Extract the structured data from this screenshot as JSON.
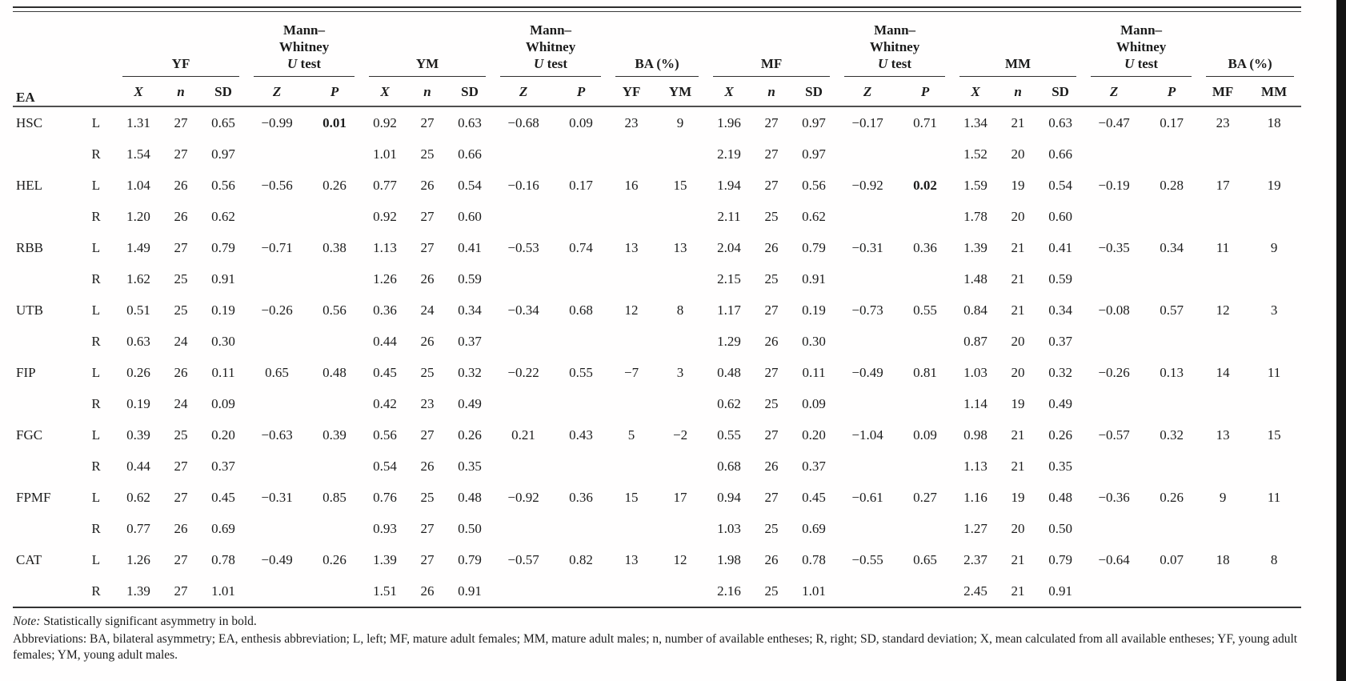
{
  "table": {
    "header": {
      "ea": "EA",
      "groups": {
        "yf": "YF",
        "ym": "YM",
        "mf": "MF",
        "mm": "MM",
        "ba": "BA (%)",
        "mw_line1": "Mann–",
        "mw_line2": "Whitney",
        "mw_u": "U",
        "mw_test": " test"
      },
      "sub": {
        "x": "X",
        "n": "n",
        "sd": "SD",
        "z": "Z",
        "p": "P",
        "yf": "YF",
        "ym": "YM",
        "mf": "MF",
        "mm": "MM"
      }
    },
    "rows": [
      {
        "ea": "HSC",
        "side": "L",
        "cells": [
          "1.31",
          "27",
          "0.65",
          "−0.99",
          "0.01",
          "0.92",
          "27",
          "0.63",
          "−0.68",
          "0.09",
          "23",
          "9",
          "1.96",
          "27",
          "0.97",
          "−0.17",
          "0.71",
          "1.34",
          "21",
          "0.63",
          "−0.47",
          "0.17",
          "23",
          "18"
        ],
        "bold": [
          4
        ]
      },
      {
        "ea": "",
        "side": "R",
        "cells": [
          "1.54",
          "27",
          "0.97",
          "",
          "",
          "1.01",
          "25",
          "0.66",
          "",
          "",
          "",
          "",
          "2.19",
          "27",
          "0.97",
          "",
          "",
          "1.52",
          "20",
          "0.66",
          "",
          "",
          "",
          ""
        ],
        "bold": []
      },
      {
        "ea": "HEL",
        "side": "L",
        "cells": [
          "1.04",
          "26",
          "0.56",
          "−0.56",
          "0.26",
          "0.77",
          "26",
          "0.54",
          "−0.16",
          "0.17",
          "16",
          "15",
          "1.94",
          "27",
          "0.56",
          "−0.92",
          "0.02",
          "1.59",
          "19",
          "0.54",
          "−0.19",
          "0.28",
          "17",
          "19"
        ],
        "bold": [
          16
        ]
      },
      {
        "ea": "",
        "side": "R",
        "cells": [
          "1.20",
          "26",
          "0.62",
          "",
          "",
          "0.92",
          "27",
          "0.60",
          "",
          "",
          "",
          "",
          "2.11",
          "25",
          "0.62",
          "",
          "",
          "1.78",
          "20",
          "0.60",
          "",
          "",
          "",
          ""
        ],
        "bold": []
      },
      {
        "ea": "RBB",
        "side": "L",
        "cells": [
          "1.49",
          "27",
          "0.79",
          "−0.71",
          "0.38",
          "1.13",
          "27",
          "0.41",
          "−0.53",
          "0.74",
          "13",
          "13",
          "2.04",
          "26",
          "0.79",
          "−0.31",
          "0.36",
          "1.39",
          "21",
          "0.41",
          "−0.35",
          "0.34",
          "11",
          "9"
        ],
        "bold": []
      },
      {
        "ea": "",
        "side": "R",
        "cells": [
          "1.62",
          "25",
          "0.91",
          "",
          "",
          "1.26",
          "26",
          "0.59",
          "",
          "",
          "",
          "",
          "2.15",
          "25",
          "0.91",
          "",
          "",
          "1.48",
          "21",
          "0.59",
          "",
          "",
          "",
          ""
        ],
        "bold": []
      },
      {
        "ea": "UTB",
        "side": "L",
        "cells": [
          "0.51",
          "25",
          "0.19",
          "−0.26",
          "0.56",
          "0.36",
          "24",
          "0.34",
          "−0.34",
          "0.68",
          "12",
          "8",
          "1.17",
          "27",
          "0.19",
          "−0.73",
          "0.55",
          "0.84",
          "21",
          "0.34",
          "−0.08",
          "0.57",
          "12",
          "3"
        ],
        "bold": []
      },
      {
        "ea": "",
        "side": "R",
        "cells": [
          "0.63",
          "24",
          "0.30",
          "",
          "",
          "0.44",
          "26",
          "0.37",
          "",
          "",
          "",
          "",
          "1.29",
          "26",
          "0.30",
          "",
          "",
          "0.87",
          "20",
          "0.37",
          "",
          "",
          "",
          ""
        ],
        "bold": []
      },
      {
        "ea": "FIP",
        "side": "L",
        "cells": [
          "0.26",
          "26",
          "0.11",
          "0.65",
          "0.48",
          "0.45",
          "25",
          "0.32",
          "−0.22",
          "0.55",
          "−7",
          "3",
          "0.48",
          "27",
          "0.11",
          "−0.49",
          "0.81",
          "1.03",
          "20",
          "0.32",
          "−0.26",
          "0.13",
          "14",
          "11"
        ],
        "bold": []
      },
      {
        "ea": "",
        "side": "R",
        "cells": [
          "0.19",
          "24",
          "0.09",
          "",
          "",
          "0.42",
          "23",
          "0.49",
          "",
          "",
          "",
          "",
          "0.62",
          "25",
          "0.09",
          "",
          "",
          "1.14",
          "19",
          "0.49",
          "",
          "",
          "",
          ""
        ],
        "bold": []
      },
      {
        "ea": "FGC",
        "side": "L",
        "cells": [
          "0.39",
          "25",
          "0.20",
          "−0.63",
          "0.39",
          "0.56",
          "27",
          "0.26",
          "0.21",
          "0.43",
          "5",
          "−2",
          "0.55",
          "27",
          "0.20",
          "−1.04",
          "0.09",
          "0.98",
          "21",
          "0.26",
          "−0.57",
          "0.32",
          "13",
          "15"
        ],
        "bold": []
      },
      {
        "ea": "",
        "side": "R",
        "cells": [
          "0.44",
          "27",
          "0.37",
          "",
          "",
          "0.54",
          "26",
          "0.35",
          "",
          "",
          "",
          "",
          "0.68",
          "26",
          "0.37",
          "",
          "",
          "1.13",
          "21",
          "0.35",
          "",
          "",
          "",
          ""
        ],
        "bold": []
      },
      {
        "ea": "FPMF",
        "side": "L",
        "cells": [
          "0.62",
          "27",
          "0.45",
          "−0.31",
          "0.85",
          "0.76",
          "25",
          "0.48",
          "−0.92",
          "0.36",
          "15",
          "17",
          "0.94",
          "27",
          "0.45",
          "−0.61",
          "0.27",
          "1.16",
          "19",
          "0.48",
          "−0.36",
          "0.26",
          "9",
          "11"
        ],
        "bold": []
      },
      {
        "ea": "",
        "side": "R",
        "cells": [
          "0.77",
          "26",
          "0.69",
          "",
          "",
          "0.93",
          "27",
          "0.50",
          "",
          "",
          "",
          "",
          "1.03",
          "25",
          "0.69",
          "",
          "",
          "1.27",
          "20",
          "0.50",
          "",
          "",
          "",
          ""
        ],
        "bold": []
      },
      {
        "ea": "CAT",
        "side": "L",
        "cells": [
          "1.26",
          "27",
          "0.78",
          "−0.49",
          "0.26",
          "1.39",
          "27",
          "0.79",
          "−0.57",
          "0.82",
          "13",
          "12",
          "1.98",
          "26",
          "0.78",
          "−0.55",
          "0.65",
          "2.37",
          "21",
          "0.79",
          "−0.64",
          "0.07",
          "18",
          "8"
        ],
        "bold": []
      },
      {
        "ea": "",
        "side": "R",
        "cells": [
          "1.39",
          "27",
          "1.01",
          "",
          "",
          "1.51",
          "26",
          "0.91",
          "",
          "",
          "",
          "",
          "2.16",
          "25",
          "1.01",
          "",
          "",
          "2.45",
          "21",
          "0.91",
          "",
          "",
          "",
          ""
        ],
        "bold": []
      }
    ]
  },
  "notes": {
    "note_prefix": "Note:",
    "note_text": " Statistically significant asymmetry in bold.",
    "abbreviations": "Abbreviations: BA, bilateral asymmetry; EA, enthesis abbreviation; L, left; MF, mature adult females; MM, mature adult males; n, number of available entheses; R, right; SD, standard deviation; X, mean calculated from all available entheses; YF, young adult females; YM, young adult males."
  }
}
